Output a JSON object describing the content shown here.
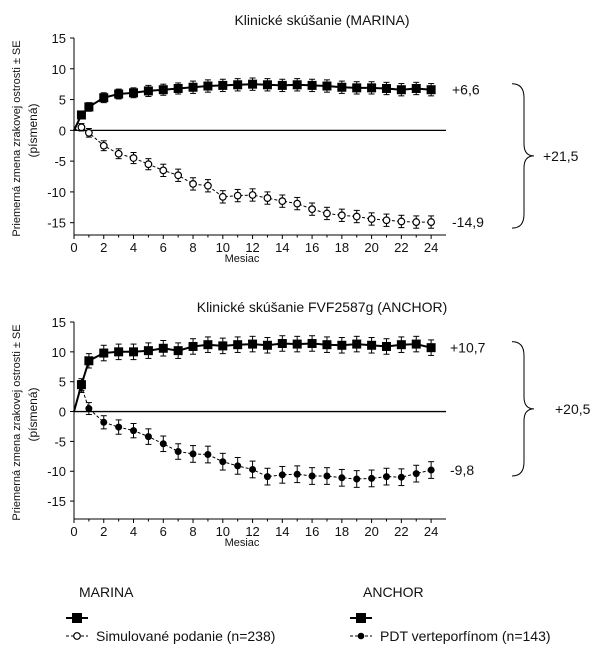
{
  "chart_data": [
    {
      "type": "line",
      "title": "Klinické skúšanie (MARINA)",
      "xlabel": "Mesiac",
      "ylabel_line1": "Priemerná zmena zrakovej ostrosti ± SE",
      "ylabel_line2": "(písmená)",
      "xlim": [
        0,
        25
      ],
      "ylim": [
        -17,
        15
      ],
      "xticks": [
        "0",
        "2",
        "4",
        "6",
        "8",
        "10",
        "12",
        "14",
        "16",
        "18",
        "20",
        "22",
        "24"
      ],
      "yticks": [
        "15",
        "10",
        "5",
        "0",
        "-5",
        "-10",
        "-15"
      ],
      "series": [
        {
          "marker": "filled-square",
          "x": [
            0.5,
            1,
            2,
            3,
            4,
            5,
            6,
            7,
            8,
            9,
            10,
            11,
            12,
            13,
            14,
            15,
            16,
            17,
            18,
            19,
            20,
            21,
            22,
            23,
            24
          ],
          "y": [
            2.5,
            3.8,
            5.3,
            5.9,
            6.1,
            6.4,
            6.6,
            6.8,
            7.0,
            7.2,
            7.3,
            7.4,
            7.5,
            7.4,
            7.3,
            7.4,
            7.3,
            7.2,
            7.0,
            6.9,
            6.9,
            6.8,
            6.6,
            6.8,
            6.6
          ],
          "se": [
            0.6,
            0.7,
            0.8,
            0.8,
            0.8,
            0.9,
            0.9,
            0.9,
            1.0,
            1.0,
            1.0,
            1.0,
            1.0,
            1.0,
            1.0,
            1.0,
            1.0,
            1.0,
            1.0,
            1.0,
            1.0,
            1.0,
            1.0,
            1.0,
            1.0
          ]
        },
        {
          "marker": "open-circle",
          "x": [
            0.5,
            1,
            2,
            3,
            4,
            5,
            6,
            7,
            8,
            9,
            10,
            11,
            12,
            13,
            14,
            15,
            16,
            17,
            18,
            19,
            20,
            21,
            22,
            23,
            24
          ],
          "y": [
            0.5,
            -0.4,
            -2.5,
            -3.8,
            -4.5,
            -5.5,
            -6.5,
            -7.3,
            -8.7,
            -9.0,
            -10.8,
            -10.6,
            -10.5,
            -11.0,
            -11.5,
            -11.9,
            -12.8,
            -13.5,
            -13.8,
            -14.0,
            -14.4,
            -14.6,
            -14.8,
            -14.9,
            -14.9
          ],
          "se": [
            0.6,
            0.7,
            0.8,
            0.8,
            0.9,
            0.9,
            1.0,
            1.0,
            1.0,
            1.0,
            1.0,
            1.0,
            1.0,
            1.0,
            1.0,
            1.0,
            1.0,
            1.0,
            1.0,
            1.0,
            1.0,
            1.0,
            1.0,
            1.0,
            1.0
          ]
        }
      ],
      "end_labels": [
        "+6,6",
        "-14,9"
      ],
      "difference_label": "+21,5"
    },
    {
      "type": "line",
      "title": "Klinické skúšanie FVF2587g (ANCHOR)",
      "xlabel": "Mesiac",
      "ylabel_line1": "Priemerná zmena zrakovej ostrosti ± SE",
      "ylabel_line2": "(písmená)",
      "xlim": [
        0,
        25
      ],
      "ylim": [
        -18,
        15
      ],
      "xticks": [
        "0",
        "2",
        "4",
        "6",
        "8",
        "10",
        "12",
        "14",
        "16",
        "18",
        "20",
        "22",
        "24"
      ],
      "yticks": [
        "15",
        "10",
        "5",
        "0",
        "-5",
        "-10",
        "-15"
      ],
      "series": [
        {
          "marker": "filled-square",
          "x": [
            0.5,
            1,
            2,
            3,
            4,
            5,
            6,
            7,
            8,
            9,
            10,
            11,
            12,
            13,
            14,
            15,
            16,
            17,
            18,
            19,
            20,
            21,
            22,
            23,
            24
          ],
          "y": [
            4.5,
            8.5,
            9.8,
            10.0,
            10.0,
            10.2,
            10.6,
            10.2,
            10.9,
            11.2,
            11.0,
            11.2,
            11.3,
            11.1,
            11.4,
            11.3,
            11.4,
            11.2,
            11.1,
            11.3,
            11.1,
            10.9,
            11.2,
            11.3,
            10.7
          ],
          "se": [
            1.0,
            1.2,
            1.3,
            1.3,
            1.3,
            1.3,
            1.3,
            1.3,
            1.3,
            1.3,
            1.3,
            1.3,
            1.3,
            1.3,
            1.3,
            1.3,
            1.3,
            1.3,
            1.3,
            1.3,
            1.3,
            1.3,
            1.3,
            1.3,
            1.3
          ]
        },
        {
          "marker": "filled-circle",
          "x": [
            0.5,
            1,
            2,
            3,
            4,
            5,
            6,
            7,
            8,
            9,
            10,
            11,
            12,
            13,
            14,
            15,
            16,
            17,
            18,
            19,
            20,
            21,
            22,
            23,
            24
          ],
          "y": [
            4.2,
            0.5,
            -1.8,
            -2.6,
            -3.2,
            -4.2,
            -5.4,
            -6.7,
            -7.1,
            -7.2,
            -8.4,
            -9.1,
            -9.7,
            -10.9,
            -10.6,
            -10.5,
            -10.8,
            -10.8,
            -11.1,
            -11.3,
            -11.2,
            -10.9,
            -11.0,
            -10.4,
            -9.8
          ],
          "se": [
            1.0,
            1.0,
            1.1,
            1.2,
            1.2,
            1.3,
            1.3,
            1.3,
            1.4,
            1.4,
            1.4,
            1.4,
            1.4,
            1.4,
            1.4,
            1.4,
            1.4,
            1.4,
            1.4,
            1.4,
            1.4,
            1.4,
            1.4,
            1.4,
            1.4
          ]
        }
      ],
      "end_labels": [
        "+10,7",
        "-9,8"
      ],
      "difference_label": "+20,5"
    }
  ],
  "legend": {
    "marina_heading": "MARINA",
    "anchor_heading": "ANCHOR",
    "marina_sham": "Simulované podanie (n=238)",
    "anchor_pdt": "PDT verteporfínom (n=143)"
  }
}
